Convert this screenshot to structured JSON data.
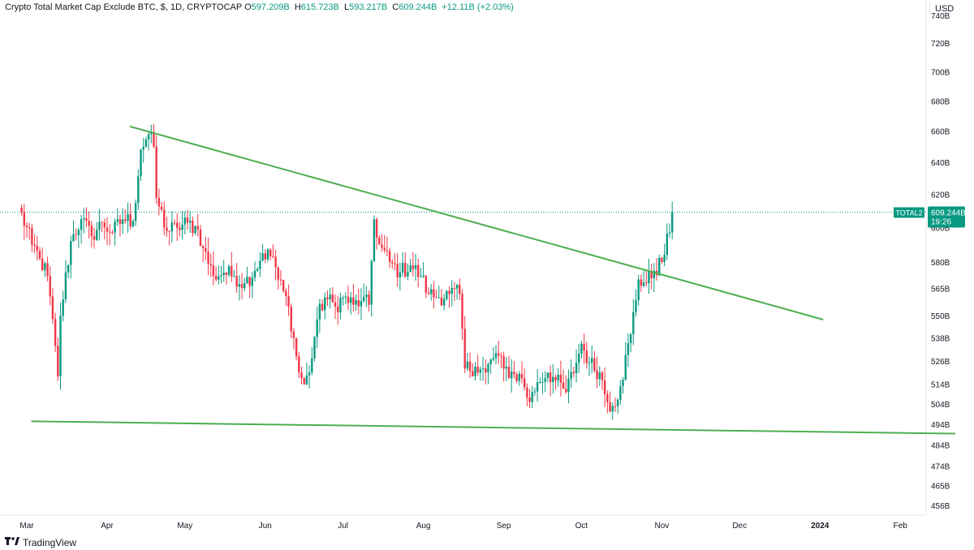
{
  "header": {
    "symbol_title": "Crypto Total Market Cap Exclude BTC, $, 1D, CRYPTOCAP",
    "open_label": "O",
    "open_value": "597.209B",
    "high_label": "H",
    "high_value": "615.723B",
    "low_label": "L",
    "low_value": "593.217B",
    "close_label": "C",
    "close_value": "609.244B",
    "change_value": "+12.11B (+2.03%)"
  },
  "price_scale": {
    "currency": "USD"
  },
  "branding": {
    "name": "TradingView",
    "logo_icon": "tradingview-logo-icon"
  },
  "colors": {
    "up": "#089981",
    "down": "#f23645",
    "trendline": "#4caf50",
    "price_line": "#089981"
  },
  "chart_data": {
    "type": "candlestick",
    "symbol": "TOTAL2",
    "interval": "1D",
    "y_scale": "log",
    "ylim": [
      450,
      745
    ],
    "y_ticks": [
      {
        "value": 456,
        "label": "456B"
      },
      {
        "value": 465,
        "label": "465B"
      },
      {
        "value": 474,
        "label": "474B"
      },
      {
        "value": 484,
        "label": "484B"
      },
      {
        "value": 494,
        "label": "494B"
      },
      {
        "value": 504,
        "label": "504B"
      },
      {
        "value": 514,
        "label": "514B"
      },
      {
        "value": 526,
        "label": "526B"
      },
      {
        "value": 538,
        "label": "538B"
      },
      {
        "value": 550,
        "label": "550B"
      },
      {
        "value": 565,
        "label": "565B"
      },
      {
        "value": 580,
        "label": "580B"
      },
      {
        "value": 600,
        "label": "600B"
      },
      {
        "value": 620,
        "label": "620B"
      },
      {
        "value": 640,
        "label": "640B"
      },
      {
        "value": 660,
        "label": "660B"
      },
      {
        "value": 680,
        "label": "680B"
      },
      {
        "value": 700,
        "label": "700B"
      },
      {
        "value": 720,
        "label": "720B"
      },
      {
        "value": 740,
        "label": "740B"
      }
    ],
    "x_ticks": [
      {
        "date": "2023-03-01",
        "label": "Mar"
      },
      {
        "date": "2023-04-01",
        "label": "Apr"
      },
      {
        "date": "2023-05-01",
        "label": "May"
      },
      {
        "date": "2023-06-01",
        "label": "Jun"
      },
      {
        "date": "2023-07-01",
        "label": "Jul"
      },
      {
        "date": "2023-08-01",
        "label": "Aug"
      },
      {
        "date": "2023-09-01",
        "label": "Sep"
      },
      {
        "date": "2023-10-01",
        "label": "Oct"
      },
      {
        "date": "2023-11-01",
        "label": "Nov"
      },
      {
        "date": "2023-12-01",
        "label": "Dec"
      },
      {
        "date": "2024-01-01",
        "label": "2024"
      },
      {
        "date": "2024-02-01",
        "label": "Feb"
      }
    ],
    "anchors": [
      [
        "2023-02-26",
        612
      ],
      [
        "2023-03-03",
        590
      ],
      [
        "2023-03-06",
        582
      ],
      [
        "2023-03-09",
        572
      ],
      [
        "2023-03-13",
        518
      ],
      [
        "2023-03-14",
        550
      ],
      [
        "2023-03-18",
        592
      ],
      [
        "2023-03-22",
        605
      ],
      [
        "2023-03-26",
        595
      ],
      [
        "2023-03-30",
        603
      ],
      [
        "2023-04-03",
        597
      ],
      [
        "2023-04-07",
        605
      ],
      [
        "2023-04-11",
        604
      ],
      [
        "2023-04-14",
        648
      ],
      [
        "2023-04-17",
        658
      ],
      [
        "2023-04-19",
        650
      ],
      [
        "2023-04-20",
        618
      ],
      [
        "2023-04-24",
        598
      ],
      [
        "2023-04-28",
        600
      ],
      [
        "2023-05-02",
        603
      ],
      [
        "2023-05-06",
        599
      ],
      [
        "2023-05-08",
        588
      ],
      [
        "2023-05-12",
        572
      ],
      [
        "2023-05-16",
        574
      ],
      [
        "2023-05-20",
        572
      ],
      [
        "2023-05-24",
        568
      ],
      [
        "2023-05-28",
        575
      ],
      [
        "2023-05-31",
        585
      ],
      [
        "2023-06-04",
        583
      ],
      [
        "2023-06-06",
        570
      ],
      [
        "2023-06-10",
        555
      ],
      [
        "2023-06-14",
        520
      ],
      [
        "2023-06-16",
        514
      ],
      [
        "2023-06-18",
        520
      ],
      [
        "2023-06-21",
        548
      ],
      [
        "2023-06-24",
        560
      ],
      [
        "2023-06-28",
        555
      ],
      [
        "2023-07-01",
        560
      ],
      [
        "2023-07-05",
        556
      ],
      [
        "2023-07-08",
        558
      ],
      [
        "2023-07-11",
        556
      ],
      [
        "2023-07-13",
        605
      ],
      [
        "2023-07-15",
        590
      ],
      [
        "2023-07-19",
        580
      ],
      [
        "2023-07-23",
        574
      ],
      [
        "2023-07-27",
        578
      ],
      [
        "2023-07-31",
        572
      ],
      [
        "2023-08-03",
        562
      ],
      [
        "2023-08-07",
        560
      ],
      [
        "2023-08-11",
        562
      ],
      [
        "2023-08-15",
        562
      ],
      [
        "2023-08-17",
        522
      ],
      [
        "2023-08-21",
        523
      ],
      [
        "2023-08-25",
        520
      ],
      [
        "2023-08-29",
        530
      ],
      [
        "2023-09-01",
        522
      ],
      [
        "2023-09-05",
        519
      ],
      [
        "2023-09-08",
        517
      ],
      [
        "2023-09-11",
        505
      ],
      [
        "2023-09-14",
        515
      ],
      [
        "2023-09-18",
        520
      ],
      [
        "2023-09-21",
        516
      ],
      [
        "2023-09-25",
        510
      ],
      [
        "2023-09-29",
        525
      ],
      [
        "2023-10-01",
        535
      ],
      [
        "2023-10-04",
        525
      ],
      [
        "2023-10-08",
        520
      ],
      [
        "2023-10-11",
        505
      ],
      [
        "2023-10-13",
        503
      ],
      [
        "2023-10-16",
        513
      ],
      [
        "2023-10-20",
        540
      ],
      [
        "2023-10-23",
        570
      ],
      [
        "2023-10-26",
        568
      ],
      [
        "2023-10-29",
        575
      ],
      [
        "2023-11-01",
        580
      ],
      [
        "2023-11-04",
        597
      ],
      [
        "2023-11-05",
        609.244
      ]
    ],
    "last_bar": {
      "date": "2023-11-05",
      "open": 597.209,
      "high": 615.723,
      "low": 593.217,
      "close": 609.244
    },
    "trendlines": [
      {
        "name": "descending resistance",
        "points": [
          [
            "2023-04-10",
            663
          ],
          [
            "2024-01-02",
            548
          ]
        ]
      },
      {
        "name": "horizontal support",
        "points": [
          [
            "2023-03-03",
            495.5
          ],
          [
            "2024-02-22",
            489.5
          ]
        ]
      }
    ],
    "last_price": {
      "symbol_label": "TOTAL2",
      "value": 609.244,
      "value_label": "609.244B",
      "countdown": "19:26"
    }
  }
}
